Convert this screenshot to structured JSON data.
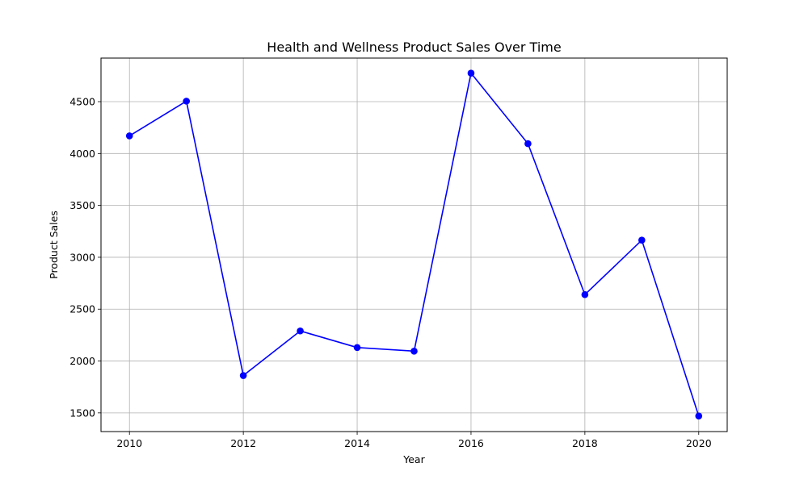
{
  "chart_data": {
    "type": "line",
    "title": "Health and Wellness Product Sales Over Time",
    "xlabel": "Year",
    "ylabel": "Product Sales",
    "xlim": [
      2009.5,
      2020.5
    ],
    "ylim": [
      1320,
      4920
    ],
    "x_ticks": [
      2010,
      2012,
      2014,
      2016,
      2018,
      2020
    ],
    "y_ticks": [
      1500,
      2000,
      2500,
      3000,
      3500,
      4000,
      4500
    ],
    "grid": true,
    "series": [
      {
        "color": "#0000ff",
        "marker": "circle",
        "x": [
          2010,
          2011,
          2012,
          2013,
          2014,
          2015,
          2016,
          2017,
          2018,
          2019,
          2020
        ],
        "y": [
          4170,
          4505,
          1860,
          2290,
          2130,
          2095,
          4775,
          4095,
          2640,
          3165,
          1470
        ]
      }
    ]
  }
}
